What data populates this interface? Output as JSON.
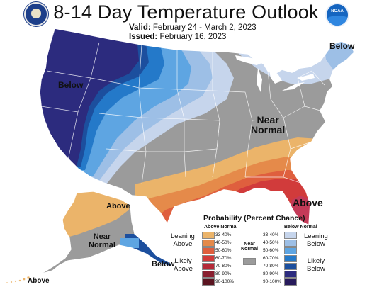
{
  "header": {
    "title": "8-14 Day Temperature Outlook",
    "valid_label": "Valid:",
    "valid_value": "February 24 - March 2, 2023",
    "issued_label": "Issued:",
    "issued_value": "February 16, 2023",
    "left_logo": "doc-seal-icon",
    "right_logo": "noaa-logo-icon",
    "right_logo_text": "NOAA"
  },
  "map_labels": {
    "west": "Below",
    "maine": "Below",
    "near_normal_line1": "Near",
    "near_normal_line2": "Normal",
    "southeast": "Above",
    "alaska_above": "Above",
    "alaska_near_line1": "Near",
    "alaska_near_line2": "Normal",
    "alaska_panhandle": "Below",
    "aleutians": "Above"
  },
  "legend": {
    "title": "Probability (Percent Chance)",
    "above_header": "Above Normal",
    "below_header": "Below Normal",
    "normal_header_line1": "Near",
    "normal_header_line2": "Normal",
    "leaning_above": [
      "Leaning",
      "Above"
    ],
    "likely_above": [
      "Likely",
      "Above"
    ],
    "leaning_below": [
      "Leaning",
      "Below"
    ],
    "likely_below": [
      "Likely",
      "Below"
    ],
    "above": [
      {
        "label": "33-40%",
        "color": "#ebb46a"
      },
      {
        "label": "40-50%",
        "color": "#e58a4a"
      },
      {
        "label": "50-60%",
        "color": "#df5f3e"
      },
      {
        "label": "60-70%",
        "color": "#d13b3b"
      },
      {
        "label": "70-80%",
        "color": "#b52a38"
      },
      {
        "label": "80-90%",
        "color": "#8a2030"
      },
      {
        "label": "90-100%",
        "color": "#5a1420"
      }
    ],
    "below": [
      {
        "label": "33-40%",
        "color": "#c6d5ec"
      },
      {
        "label": "40-50%",
        "color": "#9dbfe6"
      },
      {
        "label": "50-60%",
        "color": "#5ea5e2"
      },
      {
        "label": "60-70%",
        "color": "#2479c9"
      },
      {
        "label": "70-80%",
        "color": "#1c4f9e"
      },
      {
        "label": "80-90%",
        "color": "#2c2b7e"
      },
      {
        "label": "90-100%",
        "color": "#271a5b"
      }
    ],
    "normal_color": "#9b9b9b"
  }
}
